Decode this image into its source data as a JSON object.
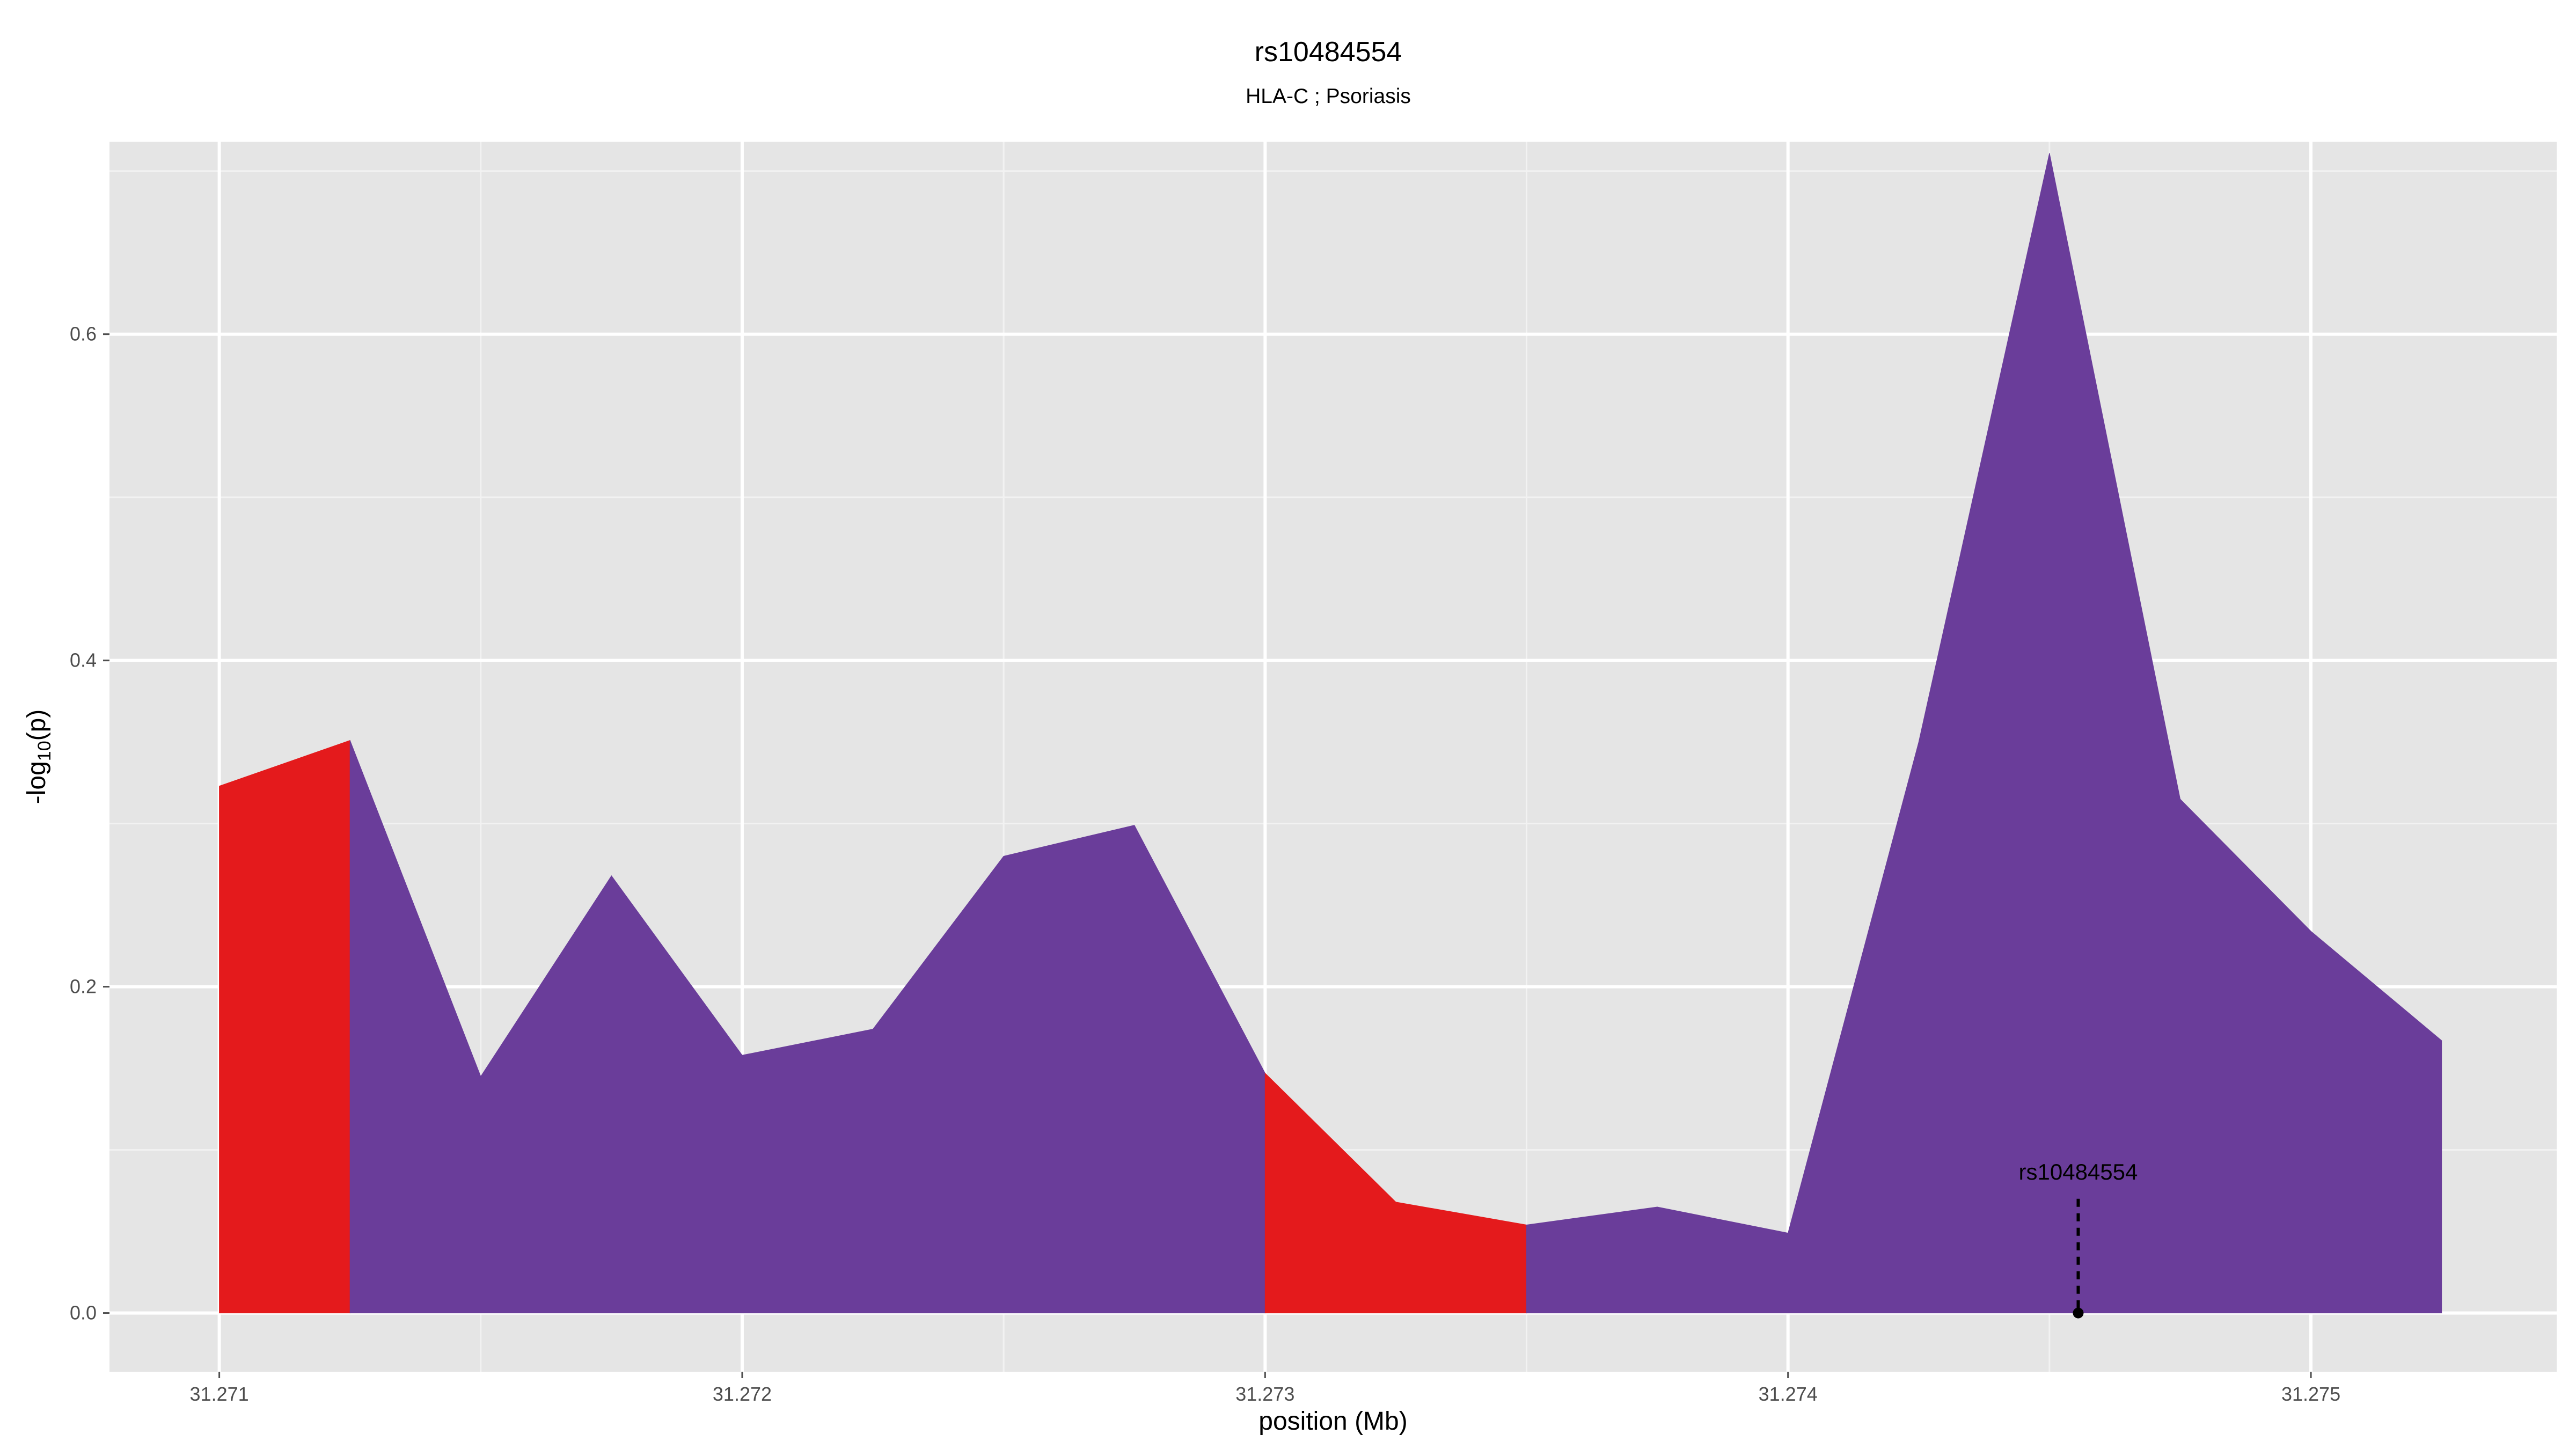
{
  "chart_data": {
    "type": "area",
    "title": "rs10484554",
    "subtitle": "HLA-C ; Psoriasis",
    "xlabel": "position (Mb)",
    "ylabel": "-log10(p)",
    "ylabel_main": "-log",
    "ylabel_sub": "10",
    "ylabel_tail": "(p)",
    "xlim": [
      31.27079,
      31.27547
    ],
    "ylim": [
      -0.036,
      0.718
    ],
    "x_ticks": [
      31.271,
      31.272,
      31.273,
      31.274,
      31.275
    ],
    "x_tick_labels": [
      "31.271",
      "31.272",
      "31.273",
      "31.274",
      "31.275"
    ],
    "x_minor_ticks": [
      31.2715,
      31.2725,
      31.2735,
      31.2745
    ],
    "y_ticks": [
      0.0,
      0.2,
      0.4,
      0.6
    ],
    "y_tick_labels": [
      "0.0",
      "0.2",
      "0.4",
      "0.6"
    ],
    "y_minor_ticks": [
      0.1,
      0.3,
      0.5,
      0.7
    ],
    "grid": true,
    "points": [
      {
        "x": 31.271,
        "y": 0.323
      },
      {
        "x": 31.27125,
        "y": 0.351
      },
      {
        "x": 31.2715,
        "y": 0.145
      },
      {
        "x": 31.27175,
        "y": 0.268
      },
      {
        "x": 31.272,
        "y": 0.158
      },
      {
        "x": 31.27225,
        "y": 0.174
      },
      {
        "x": 31.2725,
        "y": 0.28
      },
      {
        "x": 31.27275,
        "y": 0.299
      },
      {
        "x": 31.273,
        "y": 0.147
      },
      {
        "x": 31.27325,
        "y": 0.068
      },
      {
        "x": 31.2735,
        "y": 0.054
      },
      {
        "x": 31.27375,
        "y": 0.065
      },
      {
        "x": 31.274,
        "y": 0.049
      },
      {
        "x": 31.27425,
        "y": 0.35
      },
      {
        "x": 31.2745,
        "y": 0.711
      },
      {
        "x": 31.27475,
        "y": 0.315
      },
      {
        "x": 31.275,
        "y": 0.234
      },
      {
        "x": 31.27525,
        "y": 0.167
      }
    ],
    "segments": [
      {
        "x_start": 31.271,
        "x_end": 31.27125,
        "color": "#e41a1c"
      },
      {
        "x_start": 31.27125,
        "x_end": 31.273,
        "color": "#6a3d9a"
      },
      {
        "x_start": 31.273,
        "x_end": 31.2735,
        "color": "#e41a1c"
      },
      {
        "x_start": 31.2735,
        "x_end": 31.27525,
        "color": "#6a3d9a"
      }
    ],
    "snp_marker": {
      "label": "rs10484554",
      "x": 31.274555,
      "y": 0.0,
      "line_top_y": 0.07
    },
    "colors": {
      "panel_background": "#e5e5e5",
      "grid_major": "#ffffff",
      "grid_minor": "#f2f2f2",
      "red_fill": "#e41a1c",
      "purple_fill": "#6a3d9a"
    }
  }
}
